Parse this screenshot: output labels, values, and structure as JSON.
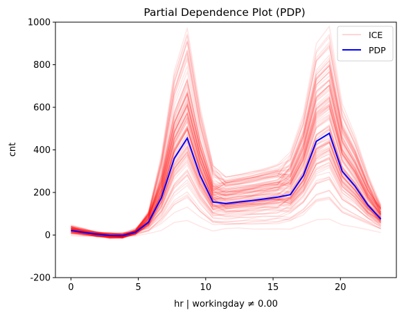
{
  "chart_data": {
    "type": "line",
    "title": "Partial Dependence Plot (PDP)",
    "xlabel": "hr | workingday ≠ 0.00",
    "ylabel": "cnt",
    "xlim": [
      -1.15,
      24.15
    ],
    "ylim": [
      -200,
      1000
    ],
    "xticks": [
      0,
      5,
      10,
      15,
      20
    ],
    "yticks": [
      -200,
      0,
      200,
      400,
      600,
      800,
      1000
    ],
    "grid": false,
    "legend": {
      "placement": "top-right",
      "entries": [
        "ICE",
        "PDP"
      ]
    },
    "colors": {
      "ice": "#ff0000",
      "pdp": "#0000ff",
      "legend_ice": "#ffc8c8"
    },
    "x": [
      0,
      0.96,
      1.92,
      2.88,
      3.83,
      4.79,
      5.75,
      6.71,
      7.67,
      8.63,
      9.58,
      10.54,
      11.5,
      12.46,
      13.42,
      14.38,
      15.33,
      16.29,
      17.25,
      18.21,
      19.17,
      20.13,
      21.08,
      22.04,
      23.0
    ],
    "series": [
      {
        "name": "PDP",
        "values": [
          22,
          12,
          4,
          -2,
          -3,
          13,
          60,
          175,
          360,
          455,
          280,
          155,
          148,
          155,
          162,
          170,
          178,
          190,
          280,
          440,
          478,
          300,
          230,
          140,
          75
        ]
      }
    ]
  }
}
